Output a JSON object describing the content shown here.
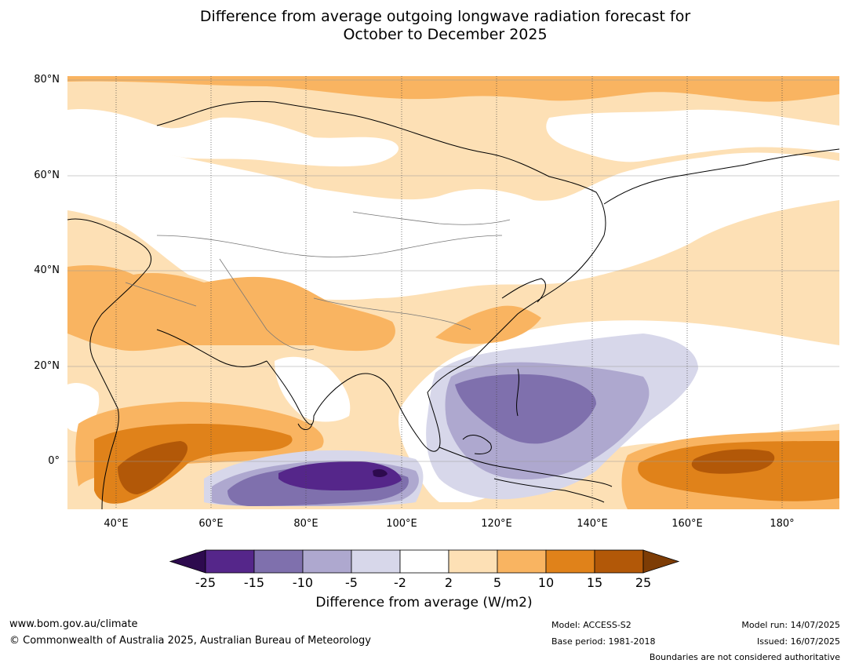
{
  "title": {
    "line1": "Difference from average outgoing longwave radiation forecast for",
    "line2": "October to December 2025"
  },
  "map": {
    "lat_labels": [
      "80°N",
      "60°N",
      "40°N",
      "20°N",
      "0°"
    ],
    "lon_labels": [
      "40°E",
      "60°E",
      "80°E",
      "100°E",
      "120°E",
      "140°E",
      "160°E",
      "180°"
    ]
  },
  "colorbar": {
    "ticks": [
      "-25",
      "-15",
      "-10",
      "-5",
      "-2",
      "2",
      "5",
      "10",
      "15",
      "25"
    ],
    "colors": [
      "#2d0a4e",
      "#55268a",
      "#7f70ad",
      "#aea8cf",
      "#d7d7ea",
      "#ffffff",
      "#fde0b5",
      "#f9b461",
      "#e0821a",
      "#b25808",
      "#7d3c05"
    ],
    "label": "Difference from average (W/m2)"
  },
  "footer": {
    "website": "www.bom.gov.au/climate",
    "copyright": "© Commonwealth of Australia 2025, Australian Bureau of Meteorology",
    "model": "Model: ACCESS-S2",
    "base_period": "Base period: 1981-2018",
    "model_run": "Model run: 14/07/2025",
    "issued": "Issued: 16/07/2025",
    "disclaimer": "Boundaries are not considered authoritative"
  }
}
